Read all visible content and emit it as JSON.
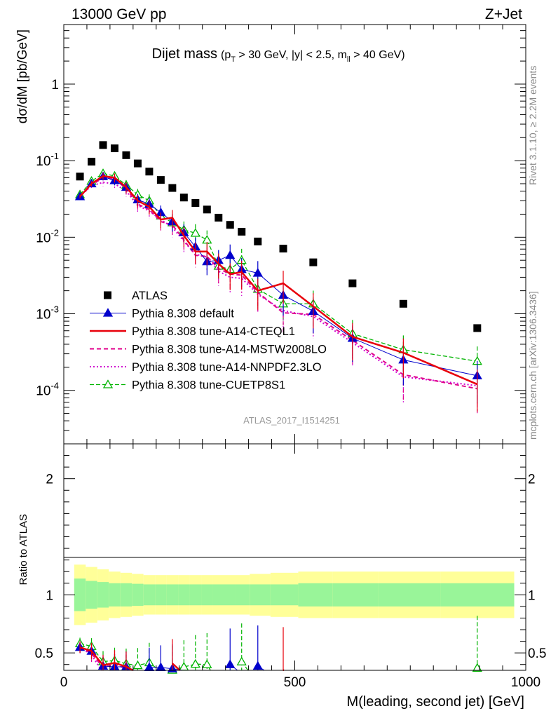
{
  "header": {
    "left": "13000 GeV pp",
    "right": "Z+Jet"
  },
  "chart_data": {
    "type": "line",
    "title": "Dijet mass",
    "subtitle": "(p_T > 30 GeV, |y| < 2.5, m_ll > 40 GeV)",
    "analysis_tag": "ATLAS_2017_I1514251",
    "side_labels": [
      "Rivet 3.1.10, ≥ 2.2M events",
      "mcplots.cern.ch [arXiv:1306.3436]"
    ],
    "xlabel": "M(leading, second jet) [GeV]",
    "ylabel": "dσ/dM [pb/GeV]",
    "ratio_ylabel": "Ratio to ATLAS",
    "xlim": [
      0,
      1000
    ],
    "ylim": [
      2e-05,
      6
    ],
    "yscale": "log",
    "ratio_ylim": [
      0.35,
      2.3
    ],
    "x_ticks": [
      0,
      500,
      1000
    ],
    "y_ticks": [
      {
        "label": "1"
      },
      {
        "label": "10^-1"
      },
      {
        "label": "10^-2"
      },
      {
        "label": "10^-3"
      },
      {
        "label": "10^-4"
      }
    ],
    "ratio_ticks": [
      {
        "label": "2"
      },
      {
        "label": "1"
      },
      {
        "label": "0.5"
      }
    ],
    "legend_position": "lower-left",
    "x": [
      35,
      60,
      85,
      110,
      135,
      160,
      185,
      210,
      235,
      260,
      285,
      310,
      335,
      360,
      385,
      420,
      475,
      540,
      625,
      735,
      895
    ],
    "series": [
      {
        "name": "ATLAS",
        "style": "data",
        "color": "#000000",
        "values": [
          0.062,
          0.097,
          0.16,
          0.145,
          0.118,
          0.092,
          0.072,
          0.056,
          0.044,
          0.033,
          0.028,
          0.023,
          0.018,
          0.0145,
          0.0118,
          0.0088,
          0.0071,
          0.0047,
          0.0025,
          0.00135,
          0.00065
        ],
        "band_inner": [
          0.14,
          0.12,
          0.11,
          0.1,
          0.1,
          0.095,
          0.09,
          0.09,
          0.09,
          0.09,
          0.09,
          0.09,
          0.09,
          0.09,
          0.09,
          0.09,
          0.09,
          0.1,
          0.1,
          0.1,
          0.1
        ],
        "band_outer": [
          0.26,
          0.24,
          0.22,
          0.2,
          0.19,
          0.18,
          0.17,
          0.17,
          0.17,
          0.17,
          0.17,
          0.17,
          0.17,
          0.17,
          0.17,
          0.18,
          0.19,
          0.2,
          0.2,
          0.2,
          0.2
        ]
      },
      {
        "name": "Pythia 8.308 default",
        "style": "blue",
        "color": "#0000cc",
        "values": [
          0.034,
          0.05,
          0.062,
          0.055,
          0.045,
          0.031,
          0.027,
          0.021,
          0.016,
          0.0115,
          0.0075,
          0.0048,
          0.005,
          0.0058,
          0.0038,
          0.0034,
          0.00175,
          0.00108,
          0.00048,
          0.00025,
          0.000155
        ]
      },
      {
        "name": "Pythia 8.308 tune-A14-CTEQL1",
        "style": "red",
        "color": "#e8000b",
        "values": [
          0.034,
          0.05,
          0.063,
          0.06,
          0.045,
          0.03,
          0.025,
          0.017,
          0.018,
          0.0105,
          0.0065,
          0.0065,
          0.0045,
          0.0033,
          0.0035,
          0.002,
          0.0025,
          0.00125,
          0.0005,
          0.00031,
          0.00012
        ]
      },
      {
        "name": "Pythia 8.308 tune-A14-MSTW2008LO",
        "style": "magenta-dashed",
        "color": "#e0008c",
        "values": [
          0.034,
          0.048,
          0.06,
          0.058,
          0.043,
          0.027,
          0.023,
          0.016,
          0.0145,
          0.0092,
          0.0058,
          0.0056,
          0.0039,
          0.0033,
          0.0032,
          0.0019,
          0.00103,
          0.00098,
          0.00045,
          0.00016,
          0.000105
        ]
      },
      {
        "name": "Pythia 8.308 tune-A14-NNPDF2.3LO",
        "style": "magenta-dotted",
        "color": "#d000d0",
        "values": [
          0.034,
          0.047,
          0.052,
          0.05,
          0.04,
          0.026,
          0.022,
          0.017,
          0.0135,
          0.0088,
          0.006,
          0.0055,
          0.0036,
          0.003,
          0.0029,
          0.0018,
          0.0011,
          0.00092,
          0.00042,
          0.00015,
          0.000115
        ]
      },
      {
        "name": "Pythia 8.308 tune-CUETP8S1",
        "style": "green",
        "color": "#00b400",
        "values": [
          0.036,
          0.054,
          0.068,
          0.063,
          0.048,
          0.036,
          0.03,
          0.019,
          0.0155,
          0.0125,
          0.0113,
          0.0092,
          0.0042,
          0.0038,
          0.005,
          0.0021,
          0.00135,
          0.00135,
          0.00055,
          0.00034,
          0.00024
        ]
      }
    ]
  }
}
